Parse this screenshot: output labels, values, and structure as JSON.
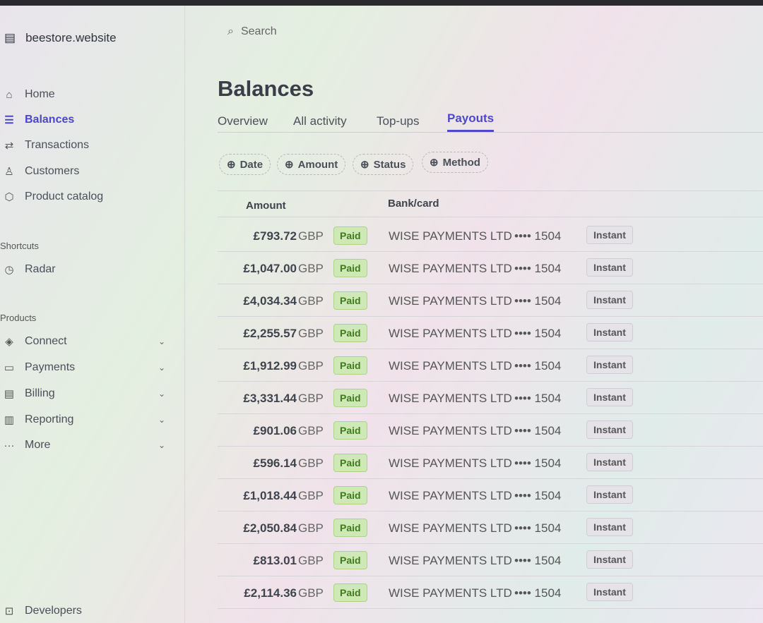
{
  "account": {
    "name": "beestore.website",
    "icon": "store-icon"
  },
  "search": {
    "placeholder": "Search"
  },
  "nav": [
    {
      "label": "Home",
      "icon": "home-icon"
    },
    {
      "label": "Balances",
      "icon": "balances-icon",
      "active": true
    },
    {
      "label": "Transactions",
      "icon": "arrows-icon"
    },
    {
      "label": "Customers",
      "icon": "person-icon"
    },
    {
      "label": "Product catalog",
      "icon": "box-icon"
    }
  ],
  "shortcuts": {
    "title": "Shortcuts",
    "items": [
      {
        "label": "Radar",
        "icon": "radar-icon"
      }
    ]
  },
  "products": {
    "title": "Products",
    "items": [
      {
        "label": "Connect",
        "icon": "connect-icon"
      },
      {
        "label": "Payments",
        "icon": "wallet-icon"
      },
      {
        "label": "Billing",
        "icon": "billing-icon"
      },
      {
        "label": "Reporting",
        "icon": "chart-icon"
      },
      {
        "label": "More",
        "icon": "more-icon"
      }
    ]
  },
  "developers": {
    "label": "Developers",
    "icon": "terminal-icon"
  },
  "page": {
    "title": "Balances"
  },
  "tabs": [
    {
      "label": "Overview"
    },
    {
      "label": "All activity"
    },
    {
      "label": "Top-ups"
    },
    {
      "label": "Payouts",
      "active": true
    }
  ],
  "filters": [
    "Date",
    "Amount",
    "Status",
    "Method"
  ],
  "table": {
    "headers": {
      "amount": "Amount",
      "bank": "Bank/card"
    },
    "rows": [
      {
        "amount": "£793.72",
        "currency": "GBP",
        "status": "Paid",
        "bank": "WISE PAYMENTS LTD",
        "last4": "•••• 1504",
        "method": "Instant"
      },
      {
        "amount": "£1,047.00",
        "currency": "GBP",
        "status": "Paid",
        "bank": "WISE PAYMENTS LTD",
        "last4": "•••• 1504",
        "method": "Instant"
      },
      {
        "amount": "£4,034.34",
        "currency": "GBP",
        "status": "Paid",
        "bank": "WISE PAYMENTS LTD",
        "last4": "•••• 1504",
        "method": "Instant"
      },
      {
        "amount": "£2,255.57",
        "currency": "GBP",
        "status": "Paid",
        "bank": "WISE PAYMENTS LTD",
        "last4": "•••• 1504",
        "method": "Instant"
      },
      {
        "amount": "£1,912.99",
        "currency": "GBP",
        "status": "Paid",
        "bank": "WISE PAYMENTS LTD",
        "last4": "•••• 1504",
        "method": "Instant"
      },
      {
        "amount": "£3,331.44",
        "currency": "GBP",
        "status": "Paid",
        "bank": "WISE PAYMENTS LTD",
        "last4": "•••• 1504",
        "method": "Instant"
      },
      {
        "amount": "£901.06",
        "currency": "GBP",
        "status": "Paid",
        "bank": "WISE PAYMENTS LTD",
        "last4": "•••• 1504",
        "method": "Instant"
      },
      {
        "amount": "£596.14",
        "currency": "GBP",
        "status": "Paid",
        "bank": "WISE PAYMENTS LTD",
        "last4": "•••• 1504",
        "method": "Instant"
      },
      {
        "amount": "£1,018.44",
        "currency": "GBP",
        "status": "Paid",
        "bank": "WISE PAYMENTS LTD",
        "last4": "•••• 1504",
        "method": "Instant"
      },
      {
        "amount": "£2,050.84",
        "currency": "GBP",
        "status": "Paid",
        "bank": "WISE PAYMENTS LTD",
        "last4": "•••• 1504",
        "method": "Instant"
      },
      {
        "amount": "£813.01",
        "currency": "GBP",
        "status": "Paid",
        "bank": "WISE PAYMENTS LTD",
        "last4": "•••• 1504",
        "method": "Instant"
      },
      {
        "amount": "£2,114.36",
        "currency": "GBP",
        "status": "Paid",
        "bank": "WISE PAYMENTS LTD",
        "last4": "•••• 1504",
        "method": "Instant"
      }
    ]
  },
  "colors": {
    "accent": "#5047c9",
    "paid_bg": "#cfe9b6",
    "paid_text": "#3f7a1e"
  }
}
